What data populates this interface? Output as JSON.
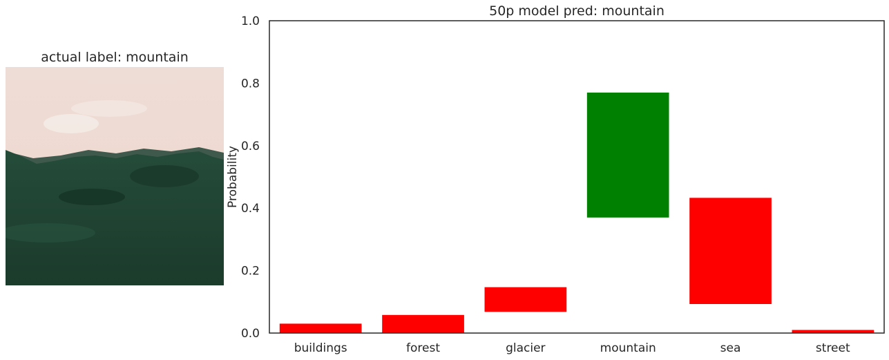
{
  "image_panel": {
    "title": "actual label: mountain",
    "colors": {
      "sky_top": "#eedcd6",
      "sky_bottom": "#f0d8cd",
      "cloud": "#f5ede9",
      "ridge": "#3f5a4c",
      "grass_top": "#254b3a",
      "grass_bottom": "#1b3b2b"
    }
  },
  "chart_data": {
    "type": "bar",
    "title": "50p model pred: mountain",
    "ylabel": "Probability",
    "xlabel": "",
    "ylim": [
      0,
      1
    ],
    "yticks": [
      "0.0",
      "0.2",
      "0.4",
      "0.6",
      "0.8",
      "1.0"
    ],
    "categories": [
      "buildings",
      "forest",
      "glacier",
      "mountain",
      "sea",
      "street"
    ],
    "bars": [
      {
        "low": 0.0,
        "high": 0.03
      },
      {
        "low": 0.0,
        "high": 0.058
      },
      {
        "low": 0.068,
        "high": 0.147
      },
      {
        "low": 0.37,
        "high": 0.77
      },
      {
        "low": 0.093,
        "high": 0.433
      },
      {
        "low": 0.0,
        "high": 0.01
      }
    ],
    "bar_colors": [
      "#ff0000",
      "#ff0000",
      "#ff0000",
      "#008000",
      "#ff0000",
      "#ff0000"
    ],
    "grid": false,
    "legend": "none"
  }
}
